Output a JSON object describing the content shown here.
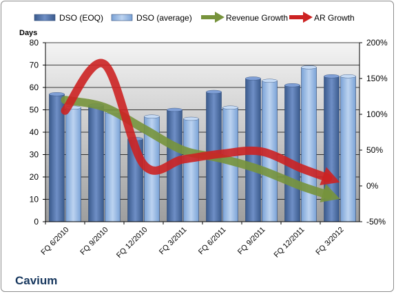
{
  "chart_data": {
    "type": "bar",
    "company": "Cavium",
    "y_axis_title": "Days",
    "categories": [
      "FQ 6/2010",
      "FQ 9/2010",
      "FQ 12/2010",
      "FQ 3/2011",
      "FQ 6/2011",
      "FQ 9/2011",
      "FQ 12/2011",
      "FQ 3/2012"
    ],
    "left_axis": {
      "ylim": [
        0,
        80
      ],
      "ticks": [
        "0",
        "10",
        "20",
        "30",
        "40",
        "50",
        "60",
        "70",
        "80"
      ]
    },
    "right_axis": {
      "ylim": [
        -50,
        200
      ],
      "ticks": [
        "-50%",
        "0%",
        "50%",
        "100%",
        "150%",
        "200%"
      ]
    },
    "series": [
      {
        "name": "DSO (EOQ)",
        "kind": "bar",
        "axis": "left",
        "color": "#4f6fa8",
        "values": [
          57,
          52,
          37,
          50,
          58,
          64,
          61,
          65
        ]
      },
      {
        "name": "DSO (average)",
        "kind": "bar",
        "axis": "left",
        "color": "#8db3e2",
        "values": [
          51,
          49,
          47,
          46,
          51,
          63,
          69,
          65
        ]
      },
      {
        "name": "Revenue Growth",
        "kind": "arrow-line",
        "axis": "right",
        "color": "#77933c",
        "values": [
          120,
          110,
          80,
          50,
          38,
          22,
          0,
          -18
        ]
      },
      {
        "name": "AR Growth",
        "kind": "arrow-line",
        "axis": "right",
        "color": "#cc2222",
        "values": [
          105,
          170,
          30,
          37,
          45,
          48,
          25,
          5
        ]
      }
    ],
    "grid": true,
    "legend_position": "top"
  }
}
